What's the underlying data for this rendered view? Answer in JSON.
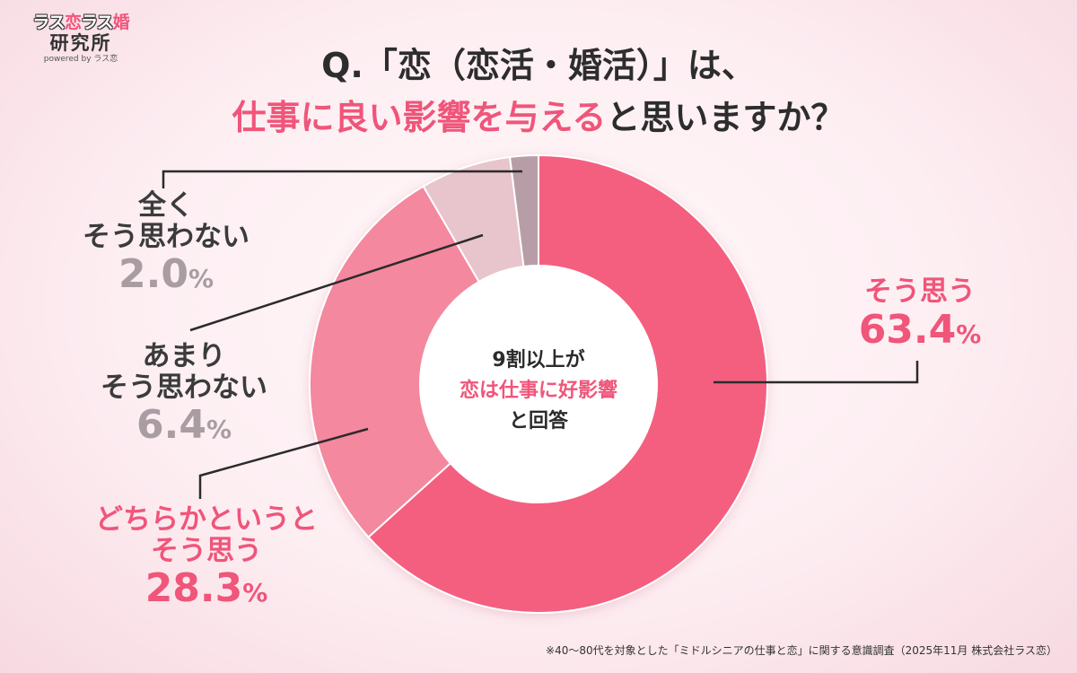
{
  "logo": {
    "top_a": "ラス",
    "top_b": "恋",
    "top_c": "ラス",
    "top_d": "婚",
    "middle": "研究所",
    "sub": "powered by ラス恋"
  },
  "title": {
    "line1": "Q.「恋（恋活・婚活）」は、",
    "line2_highlight": "仕事に良い影響を与える",
    "line2_rest": "と思いますか？"
  },
  "center": {
    "line1": "9割以上が",
    "line2": "恋は仕事に好影響",
    "line3": "と回答"
  },
  "labels": {
    "sou": {
      "name": "そう思う",
      "value": "63.4",
      "unit": "%"
    },
    "dochira": {
      "name1": "どちらかというと",
      "name2": "そう思う",
      "value": "28.3",
      "unit": "%"
    },
    "amari": {
      "name1": "あまり",
      "name2": "そう思わない",
      "value": "6.4",
      "unit": "%"
    },
    "mattaku": {
      "name1": "全く",
      "name2": "そう思わない",
      "value": "2.0",
      "unit": "%"
    }
  },
  "footnote": "※40〜80代を対象とした「ミドルシニアの仕事と恋」に関する意識調査（2025年11月 株式会社ラス恋）",
  "chart_data": {
    "type": "pie",
    "title": "「恋（恋活・婚活）」は、仕事に良い影響を与えると思いますか？",
    "categories": [
      "そう思う",
      "どちらかというとそう思う",
      "あまりそう思わない",
      "全くそう思わない"
    ],
    "values": [
      63.4,
      28.3,
      6.4,
      2.0
    ],
    "unit": "%",
    "colors": [
      "#f45f7f",
      "#f4889e",
      "#e8c4cc",
      "#b79ea6"
    ],
    "donut": true
  }
}
